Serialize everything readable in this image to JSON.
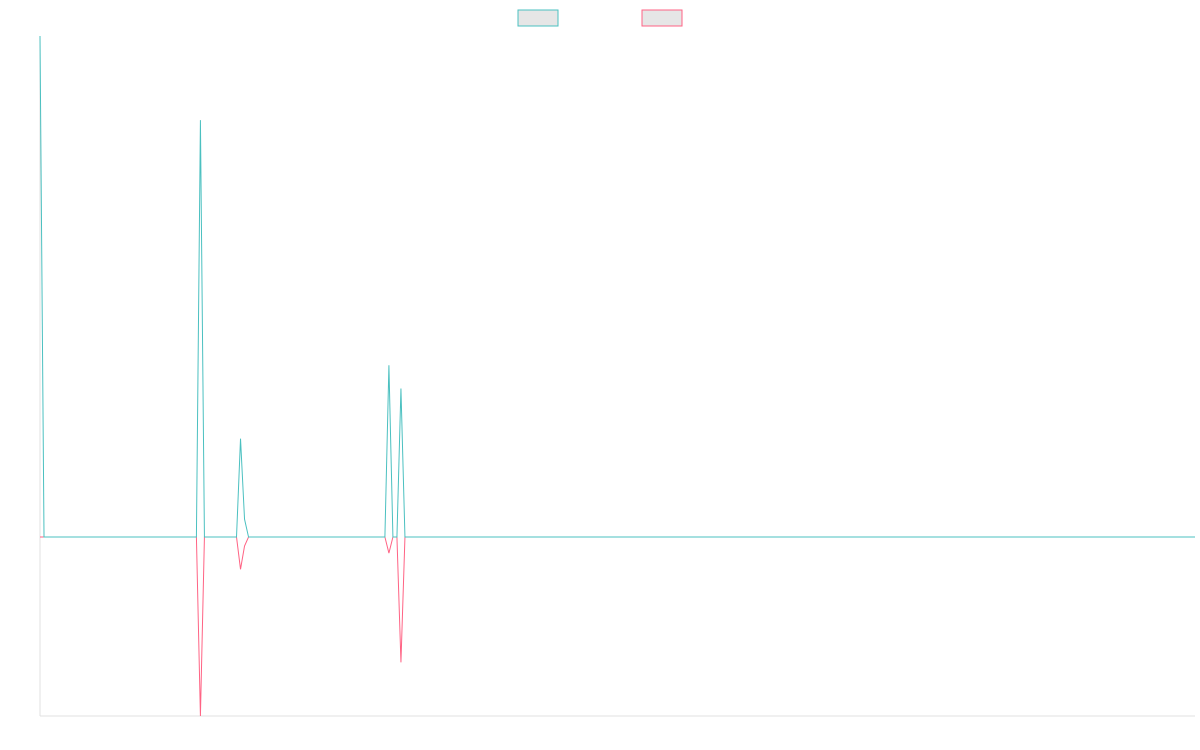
{
  "chart_data": {
    "type": "line",
    "title": "",
    "xlabel": "",
    "ylabel": "",
    "grid": false,
    "legend_position": "top-center",
    "x_domain": [
      0,
      288
    ],
    "y_domain": [
      -1,
      2.8
    ],
    "series": [
      {
        "color": "#4bc0c0",
        "points": [
          [
            0,
            2.8
          ],
          [
            1,
            0
          ],
          [
            39,
            0
          ],
          [
            40,
            2.33
          ],
          [
            41,
            0
          ],
          [
            49,
            0
          ],
          [
            50,
            0.55
          ],
          [
            51,
            0.1
          ],
          [
            52,
            0
          ],
          [
            86,
            0
          ],
          [
            87,
            0.96
          ],
          [
            88,
            0
          ],
          [
            89,
            0
          ],
          [
            90,
            0.83
          ],
          [
            91,
            0
          ],
          [
            288,
            0
          ]
        ]
      },
      {
        "color": "#ff6384",
        "points": [
          [
            0,
            0
          ],
          [
            39,
            0
          ],
          [
            40,
            -1
          ],
          [
            41,
            0
          ],
          [
            49,
            0
          ],
          [
            50,
            -0.18
          ],
          [
            51,
            -0.05
          ],
          [
            52,
            0
          ],
          [
            86,
            0
          ],
          [
            87,
            -0.09
          ],
          [
            88,
            0
          ],
          [
            89,
            0
          ],
          [
            90,
            -0.7
          ],
          [
            91,
            0
          ],
          [
            288,
            0
          ]
        ]
      }
    ]
  }
}
